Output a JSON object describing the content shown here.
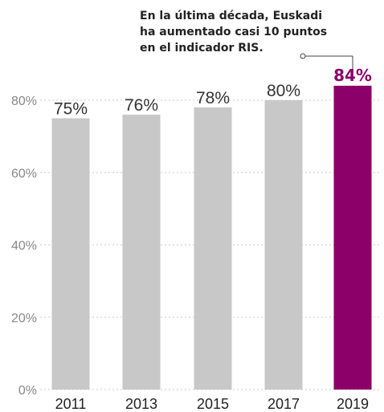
{
  "annotation": {
    "lines": [
      "En la última década, Euskadi",
      "ha aumentado casi 10 puntos",
      "en el indicador RIS."
    ]
  },
  "chart_data": {
    "type": "bar",
    "title": "",
    "xlabel": "",
    "ylabel": "",
    "categories": [
      "2011",
      "2013",
      "2015",
      "2017",
      "2019"
    ],
    "values": [
      75,
      76,
      78,
      80,
      84
    ],
    "value_labels": [
      "75%",
      "76%",
      "78%",
      "80%",
      "84%"
    ],
    "ylim": [
      0,
      84
    ],
    "y_ticks": [
      0,
      20,
      40,
      60,
      80
    ],
    "y_tick_labels": [
      "0%",
      "20%",
      "40%",
      "60%",
      "80%"
    ],
    "grid": true,
    "legend": "none",
    "highlight_index": 4
  },
  "colors": {
    "bar_default": "#c8c8c8",
    "bar_highlight": "#8b0069",
    "grid": "#cccccc",
    "axis_label": "#888888",
    "value_label": "#333333"
  }
}
